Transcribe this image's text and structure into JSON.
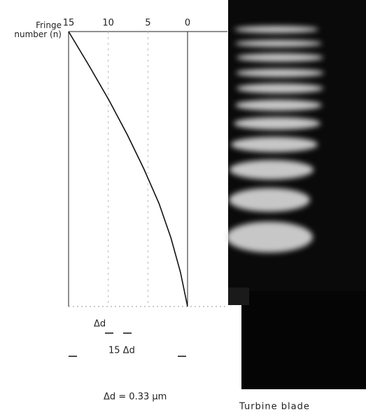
{
  "chart_data": {
    "type": "line",
    "orientation": "horizontal",
    "x_label": "Fringe number (n)",
    "categories": [
      null,
      null,
      null,
      null,
      null,
      null,
      null,
      null,
      null
    ],
    "values": [
      15,
      12.4,
      9.9,
      7.6,
      5.5,
      3.6,
      2.1,
      0.9,
      0
    ],
    "color": "#111",
    "xlim": [
      15,
      0
    ],
    "xticks": [
      15,
      10,
      5,
      0
    ],
    "grid": true,
    "annotations": {
      "delta": "Δd",
      "total": "15 Δd",
      "note": "Δd = 0.33 μm",
      "photo": "Turbine blade"
    }
  }
}
